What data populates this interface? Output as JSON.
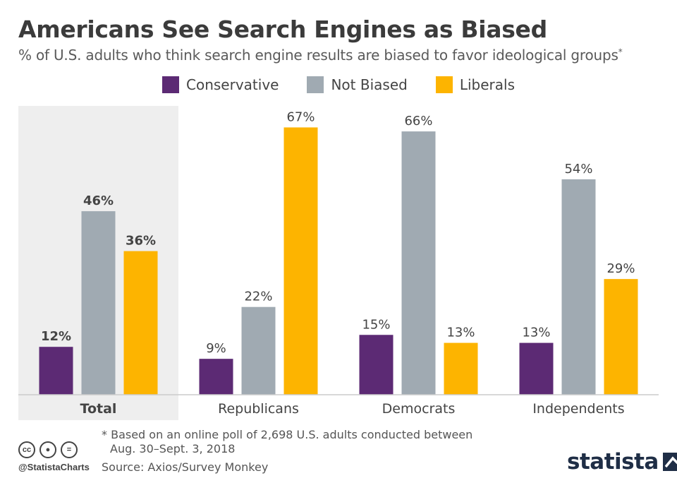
{
  "title": "Americans See Search Engines as Biased",
  "subtitle": "% of U.S. adults who think search engine results are biased to favor ideological groups",
  "subtitle_mark": "*",
  "legend": [
    {
      "label": "Conservative",
      "color": "#5c2a74"
    },
    {
      "label": "Not Biased",
      "color": "#a0aab2"
    },
    {
      "label": "Liberals",
      "color": "#fdb400"
    }
  ],
  "chart_data": {
    "type": "bar",
    "categories": [
      "Total",
      "Republicans",
      "Democrats",
      "Independents"
    ],
    "series": [
      {
        "name": "Conservative",
        "color": "#5c2a74",
        "values": [
          12,
          9,
          15,
          13
        ]
      },
      {
        "name": "Not Biased",
        "color": "#a0aab2",
        "values": [
          46,
          22,
          66,
          54
        ]
      },
      {
        "name": "Liberals",
        "color": "#fdb400",
        "values": [
          36,
          67,
          13,
          29
        ]
      }
    ],
    "value_suffix": "%",
    "ylim": [
      0,
      70
    ],
    "highlight_category": "Total",
    "grid": false,
    "legend_position": "top-center"
  },
  "footnote": {
    "line1": "* Based on an online poll of 2,698 U.S. adults conducted between",
    "line2": "Aug. 30–Sept. 3, 2018"
  },
  "source": "Source: Axios/Survey Monkey",
  "handle": "@StatistaCharts",
  "brand": "statista",
  "cc_icons": [
    {
      "icon": "cc-icon",
      "glyph": "cc"
    },
    {
      "icon": "person-icon",
      "glyph": "●"
    },
    {
      "icon": "equals-icon",
      "glyph": "="
    }
  ]
}
